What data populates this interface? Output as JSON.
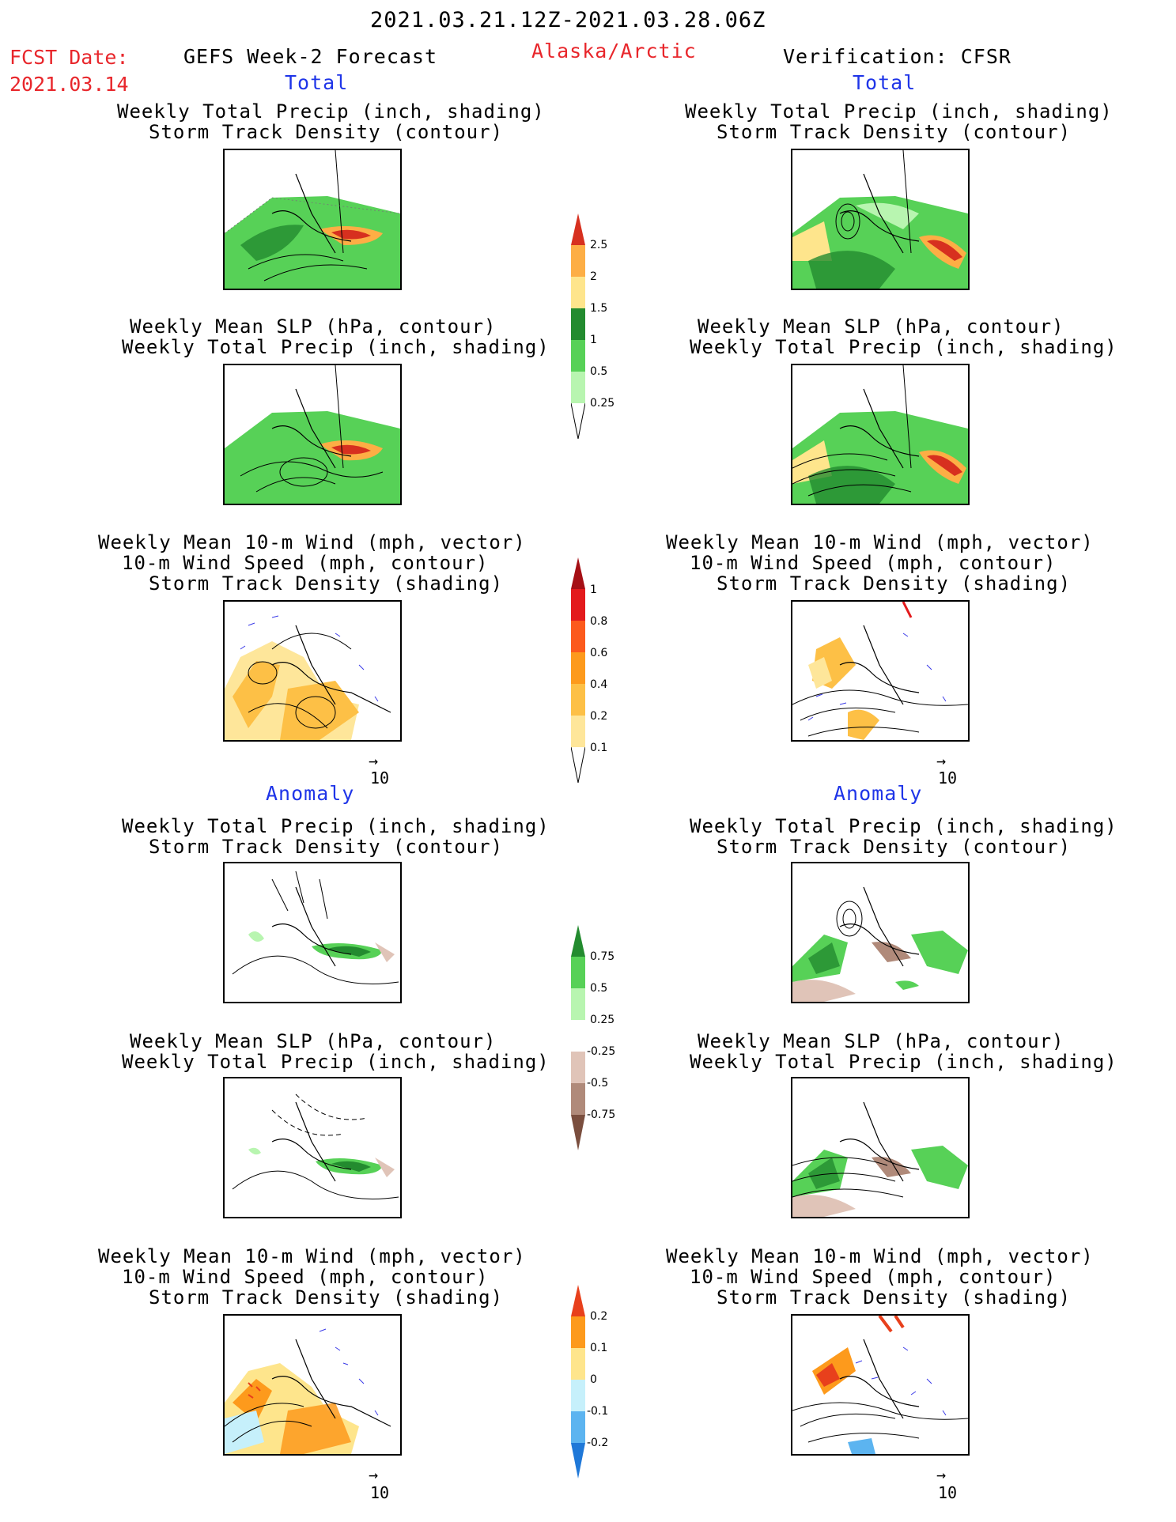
{
  "header": {
    "date_range": "2021.03.21.12Z-2021.03.28.06Z",
    "fcst_label": "FCST Date:",
    "fcst_date": "2021.03.14",
    "model_label": "GEFS Week-2 Forecast",
    "region": "Alaska/Arctic",
    "verification": "Verification: CFSR"
  },
  "sections": {
    "total": "Total",
    "anomaly": "Anomaly"
  },
  "titles": {
    "precip_storm_l1": "Weekly Total Precip (inch, shading)",
    "precip_storm_l2": "Storm Track Density (contour)",
    "slp_l1": "Weekly Mean SLP (hPa, contour)",
    "slp_l2": "Weekly Total Precip (inch, shading)",
    "wind_l1": "Weekly Mean 10-m Wind (mph, vector)",
    "wind_l2": "10-m Wind Speed (mph, contour)",
    "wind_l3": "Storm Track Density (shading)"
  },
  "vector_ref": "10",
  "colorbars": {
    "precip_total": {
      "labels": [
        "2.5",
        "2",
        "1.5",
        "1",
        "0.5",
        "0.25"
      ],
      "colors": [
        "#d7301f",
        "#fdae45",
        "#fee58c",
        "#238b2f",
        "#57d157",
        "#b8f5b0"
      ]
    },
    "storm_total": {
      "labels": [
        "1",
        "0.8",
        "0.6",
        "0.4",
        "0.2",
        "0.1"
      ],
      "colors": [
        "#a50f15",
        "#e31a1c",
        "#fc5a1c",
        "#fd9a1c",
        "#fdc046",
        "#fee69a"
      ]
    },
    "precip_anom": {
      "labels": [
        "0.75",
        "0.5",
        "0.25",
        "-0.25",
        "-0.5",
        "-0.75"
      ],
      "colors": [
        "#238b2f",
        "#57d157",
        "#b8f5b0",
        "#ffffff",
        "#e0c4b8",
        "#b08a7a",
        "#7a4e3e"
      ]
    },
    "storm_anom": {
      "labels": [
        "0.2",
        "0.1",
        "0",
        "-0.1",
        "-0.2"
      ],
      "colors": [
        "#e8401c",
        "#fd9a1c",
        "#fee58c",
        "#c6f0fb",
        "#5cb4f0",
        "#1f78d8"
      ]
    }
  }
}
